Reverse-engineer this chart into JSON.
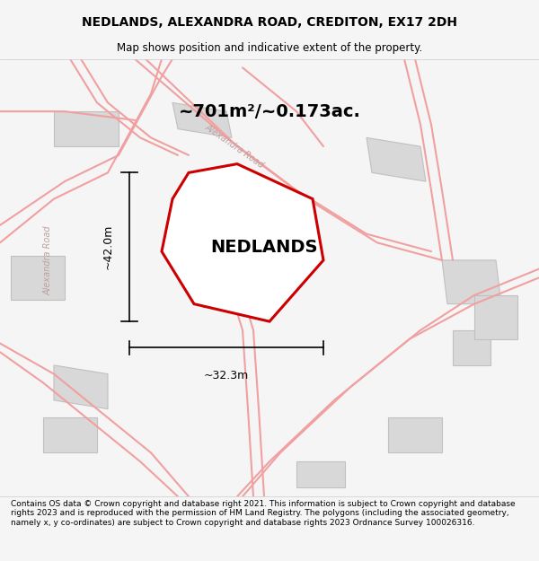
{
  "title_line1": "NEDLANDS, ALEXANDRA ROAD, CREDITON, EX17 2DH",
  "title_line2": "Map shows position and indicative extent of the property.",
  "area_text": "~701m²/~0.173ac.",
  "property_label": "NEDLANDS",
  "dim_horizontal": "~32.3m",
  "dim_vertical": "~42.0m",
  "footer_text": "Contains OS data © Crown copyright and database right 2021. This information is subject to Crown copyright and database rights 2023 and is reproduced with the permission of HM Land Registry. The polygons (including the associated geometry, namely x, y co-ordinates) are subject to Crown copyright and database rights 2023 Ordnance Survey 100026316.",
  "background_color": "#f5f5f5",
  "map_background": "#ffffff",
  "footer_background": "#ffffff",
  "property_fill": "#ffffff",
  "property_edge": "#cc0000",
  "road_color": "#f0a0a0",
  "building_fill": "#d8d8d8",
  "building_edge": "#c0c0c0",
  "road_label_color": "#c0a0a0",
  "title_color": "#000000",
  "footer_color": "#000000"
}
